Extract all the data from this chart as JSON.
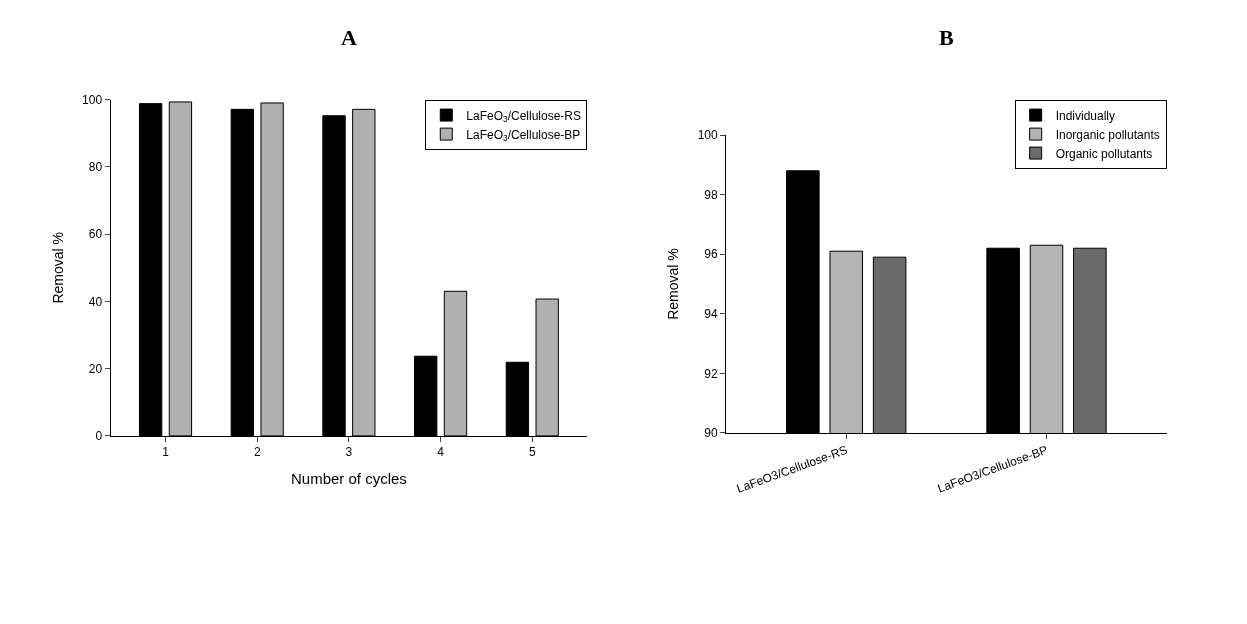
{
  "chart_data": [
    {
      "type": "bar",
      "title": "A",
      "xlabel": "Number of cycles",
      "ylabel": "Removal %",
      "categories": [
        "1",
        "2",
        "3",
        "4",
        "5"
      ],
      "series": [
        {
          "name": "LaFeO$_{3}$/Cellulose-RS",
          "color": "#000000",
          "values": [
            98.8,
            97.1,
            95.2,
            23.7,
            21.9
          ]
        },
        {
          "name": "LaFeO$_{3}$/Cellulose-BP",
          "color": "#b0b0b0",
          "values": [
            99.3,
            99.0,
            97.1,
            43.0,
            40.7
          ]
        }
      ],
      "ylim": [
        0,
        100
      ],
      "yticks": [
        0,
        20,
        40,
        60,
        80,
        100
      ],
      "legend": "top right"
    },
    {
      "type": "bar",
      "title": "B",
      "ylabel": "Removal %",
      "categories": [
        "LaFeO3/Cellulose-RS",
        "LaFeO3/Cellulose-BP"
      ],
      "series": [
        {
          "name": "Individually",
          "color": "#000000",
          "values": [
            98.8,
            96.2
          ]
        },
        {
          "name": "Inorganic pollutants",
          "color": "#b4b4b4",
          "values": [
            96.1,
            96.3
          ]
        },
        {
          "name": "Organic pollutants",
          "color": "#6a6a6a",
          "values": [
            95.9,
            96.2
          ]
        }
      ],
      "ylim": [
        90,
        100
      ],
      "yticks": [
        90,
        92,
        94,
        96,
        98,
        100
      ],
      "legend": "top right"
    }
  ]
}
